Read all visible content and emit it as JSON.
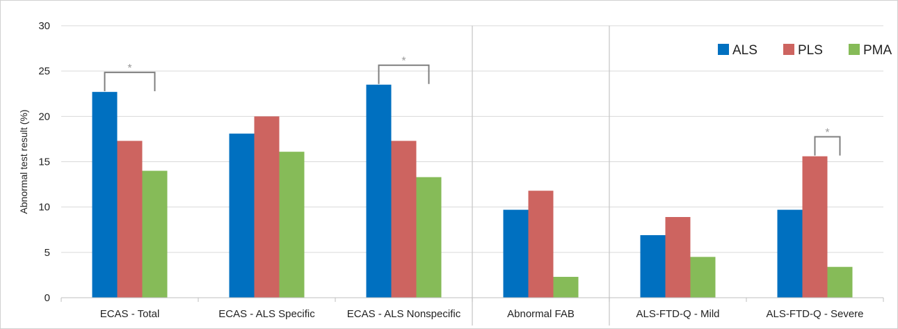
{
  "chart_data": {
    "type": "bar",
    "title": "",
    "xlabel": "",
    "ylabel": "Abnormal test result (%)",
    "ylim": [
      0,
      30
    ],
    "yticks": [
      "0",
      "5",
      "10",
      "15",
      "20",
      "25",
      "30"
    ],
    "grid": true,
    "legend_position": "top-right",
    "categories": [
      "ECAS - Total",
      "ECAS - ALS Specific",
      "ECAS - ALS Nonspecific",
      "Abnormal FAB",
      "ALS-FTD-Q - Mild",
      "ALS-FTD-Q - Severe"
    ],
    "group_separators_after": [
      2,
      3
    ],
    "series": [
      {
        "name": "ALS",
        "color": "#0070c0",
        "values": [
          22.7,
          18.1,
          23.5,
          9.7,
          6.9,
          9.7
        ]
      },
      {
        "name": "PLS",
        "color": "#cd6460",
        "values": [
          17.3,
          20.0,
          17.3,
          11.8,
          8.9,
          15.6
        ]
      },
      {
        "name": "PMA",
        "color": "#86bb58",
        "values": [
          14.0,
          16.1,
          13.3,
          2.3,
          4.5,
          3.4
        ]
      }
    ],
    "significance": [
      {
        "category": 0,
        "from_series": 0,
        "to_series": 2,
        "label": "*"
      },
      {
        "category": 2,
        "from_series": 0,
        "to_series": 2,
        "label": "*"
      },
      {
        "category": 5,
        "from_series": 1,
        "to_series": 2,
        "label": "*"
      }
    ]
  }
}
